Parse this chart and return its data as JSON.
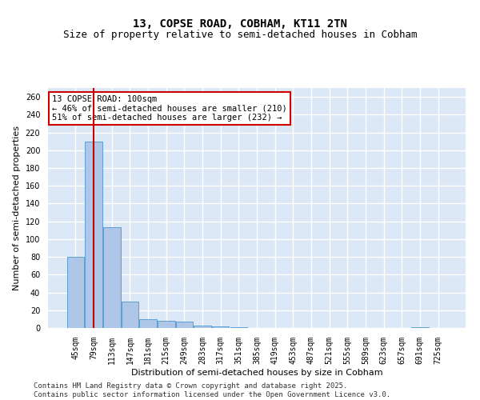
{
  "title_line1": "13, COPSE ROAD, COBHAM, KT11 2TN",
  "title_line2": "Size of property relative to semi-detached houses in Cobham",
  "xlabel": "Distribution of semi-detached houses by size in Cobham",
  "ylabel": "Number of semi-detached properties",
  "categories": [
    "45sqm",
    "79sqm",
    "113sqm",
    "147sqm",
    "181sqm",
    "215sqm",
    "249sqm",
    "283sqm",
    "317sqm",
    "351sqm",
    "385sqm",
    "419sqm",
    "453sqm",
    "487sqm",
    "521sqm",
    "555sqm",
    "589sqm",
    "623sqm",
    "657sqm",
    "691sqm",
    "725sqm"
  ],
  "values": [
    80,
    210,
    113,
    30,
    10,
    8,
    7,
    3,
    2,
    1,
    0,
    0,
    0,
    0,
    0,
    0,
    0,
    0,
    0,
    1,
    0
  ],
  "bar_color": "#aec6e8",
  "bar_edge_color": "#5a9fd4",
  "red_line_x": 1,
  "red_line_color": "#cc0000",
  "annotation_text": "13 COPSE ROAD: 100sqm\n← 46% of semi-detached houses are smaller (210)\n51% of semi-detached houses are larger (232) →",
  "annotation_box_color": "#ffffff",
  "annotation_box_edge": "#cc0000",
  "ylim": [
    0,
    270
  ],
  "yticks": [
    0,
    20,
    40,
    60,
    80,
    100,
    120,
    140,
    160,
    180,
    200,
    220,
    240,
    260
  ],
  "footer_text": "Contains HM Land Registry data © Crown copyright and database right 2025.\nContains public sector information licensed under the Open Government Licence v3.0.",
  "background_color": "#dce8f5",
  "grid_color": "#ffffff",
  "title_fontsize": 10,
  "subtitle_fontsize": 9,
  "axis_label_fontsize": 8,
  "tick_fontsize": 7,
  "annotation_fontsize": 7.5,
  "footer_fontsize": 6.5
}
